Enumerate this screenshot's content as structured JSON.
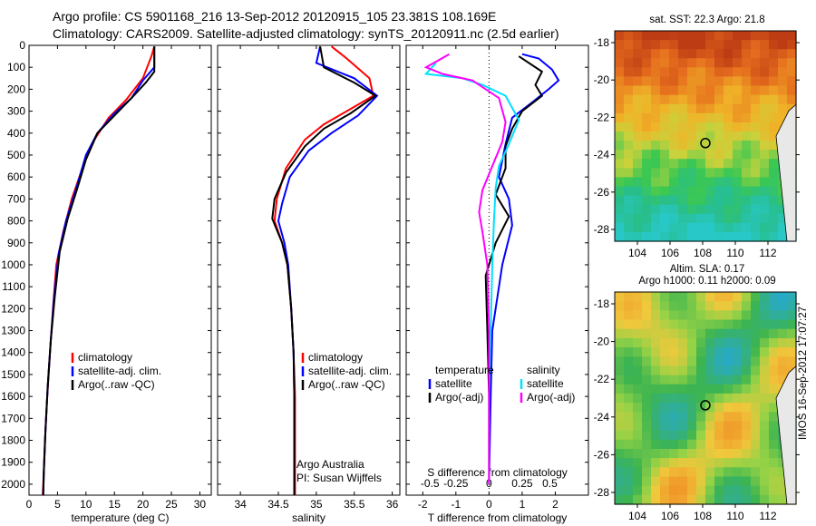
{
  "header": {
    "line1": "Argo profile: CS 5901168_216 13-Sep-2012 20120915_105 23.381S 108.169E",
    "line2": "Climatology: CARS2009. Satellite-adjusted climatology: synTS_20120911.nc (2.5d earlier)"
  },
  "stamp": "IMOS 16-Sep-2012 17:07:27",
  "colors": {
    "climatology": "#ff0000",
    "satellite": "#0000ff",
    "argo": "#000000",
    "sat_s": "#00e0ff",
    "argo_s": "#ff00ff"
  },
  "chart_data": [
    {
      "type": "line",
      "xlabel": "temperature (deg C)",
      "xlim": [
        0,
        32
      ],
      "xticks": [
        0,
        5,
        10,
        15,
        20,
        25,
        30
      ],
      "ylim": [
        2050,
        0
      ],
      "yticks": [
        0,
        100,
        200,
        300,
        400,
        500,
        600,
        700,
        800,
        900,
        1000,
        1100,
        1200,
        1300,
        1400,
        1500,
        1600,
        1700,
        1800,
        1900,
        2000
      ],
      "legend": [
        "climatology",
        "satellite-adj. clim.",
        "Argo(..raw -QC)"
      ],
      "series": [
        {
          "name": "climatology",
          "color": "climatology",
          "points": [
            [
              22,
              5
            ],
            [
              21.5,
              50
            ],
            [
              20,
              150
            ],
            [
              17,
              250
            ],
            [
              14,
              330
            ],
            [
              11.5,
              430
            ],
            [
              9.5,
              550
            ],
            [
              7.5,
              700
            ],
            [
              6,
              850
            ],
            [
              4.8,
              1000
            ],
            [
              4.2,
              1200
            ],
            [
              3.7,
              1400
            ],
            [
              3.2,
              1600
            ],
            [
              2.8,
              1800
            ],
            [
              2.5,
              2000
            ],
            [
              2.4,
              2050
            ]
          ]
        },
        {
          "name": "satellite-adj. clim.",
          "color": "satellite",
          "points": [
            [
              22,
              5
            ],
            [
              22,
              100
            ],
            [
              20,
              160
            ],
            [
              18,
              240
            ],
            [
              15,
              310
            ],
            [
              12,
              400
            ],
            [
              10,
              500
            ],
            [
              8.2,
              660
            ],
            [
              6.5,
              800
            ],
            [
              5.2,
              950
            ],
            [
              4.4,
              1150
            ],
            [
              3.8,
              1350
            ],
            [
              3.3,
              1550
            ],
            [
              2.9,
              1750
            ],
            [
              2.6,
              1950
            ],
            [
              2.5,
              2050
            ]
          ]
        },
        {
          "name": "Argo(..raw -QC)",
          "color": "argo",
          "points": [
            [
              22,
              5
            ],
            [
              22,
              120
            ],
            [
              20.5,
              170
            ],
            [
              18,
              240
            ],
            [
              15,
              320
            ],
            [
              12,
              400
            ],
            [
              10,
              520
            ],
            [
              8.5,
              650
            ],
            [
              6.8,
              790
            ],
            [
              5.4,
              940
            ],
            [
              4.5,
              1150
            ],
            [
              3.8,
              1350
            ],
            [
              3.3,
              1550
            ],
            [
              2.9,
              1750
            ],
            [
              2.6,
              1950
            ],
            [
              2.5,
              2050
            ]
          ]
        }
      ]
    },
    {
      "type": "line",
      "xlabel": "salinity",
      "xlim": [
        33.7,
        36.1
      ],
      "xticks": [
        34,
        34.5,
        35,
        35.5,
        36
      ],
      "ylim": [
        2050,
        0
      ],
      "legend": [
        "climatology",
        "satellite-adj. clim.",
        "Argo(..raw -QC)"
      ],
      "annotation": [
        "Argo Australia",
        "PI: Susan Wijffels"
      ],
      "series": [
        {
          "name": "climatology",
          "color": "climatology",
          "points": [
            [
              35.2,
              5
            ],
            [
              35.4,
              60
            ],
            [
              35.7,
              150
            ],
            [
              35.75,
              230
            ],
            [
              35.4,
              300
            ],
            [
              35.1,
              360
            ],
            [
              34.85,
              430
            ],
            [
              34.6,
              560
            ],
            [
              34.48,
              700
            ],
            [
              34.45,
              800
            ],
            [
              34.55,
              900
            ],
            [
              34.62,
              1000
            ],
            [
              34.67,
              1200
            ],
            [
              34.7,
              1400
            ],
            [
              34.72,
              1600
            ],
            [
              34.72,
              2050
            ]
          ]
        },
        {
          "name": "satellite-adj. clim.",
          "color": "satellite",
          "points": [
            [
              35.05,
              5
            ],
            [
              35.0,
              80
            ],
            [
              35.5,
              150
            ],
            [
              35.8,
              230
            ],
            [
              35.55,
              320
            ],
            [
              35.2,
              400
            ],
            [
              34.9,
              480
            ],
            [
              34.65,
              600
            ],
            [
              34.55,
              720
            ],
            [
              34.5,
              800
            ],
            [
              34.58,
              900
            ],
            [
              34.63,
              1000
            ],
            [
              34.67,
              1200
            ],
            [
              34.7,
              1400
            ],
            [
              34.71,
              1600
            ],
            [
              34.71,
              2050
            ]
          ]
        },
        {
          "name": "Argo(..raw -QC)",
          "color": "argo",
          "points": [
            [
              35.05,
              5
            ],
            [
              35.1,
              100
            ],
            [
              35.5,
              170
            ],
            [
              35.78,
              230
            ],
            [
              35.45,
              310
            ],
            [
              35.1,
              380
            ],
            [
              34.85,
              460
            ],
            [
              34.6,
              580
            ],
            [
              34.45,
              700
            ],
            [
              34.42,
              790
            ],
            [
              34.55,
              900
            ],
            [
              34.62,
              1000
            ],
            [
              34.67,
              1200
            ],
            [
              34.7,
              1400
            ],
            [
              34.71,
              1600
            ],
            [
              34.71,
              2050
            ]
          ]
        }
      ]
    },
    {
      "type": "line",
      "xlabel_top": "S difference from climatology",
      "xlabel": "T difference from climatology",
      "xlim": [
        -2.5,
        3
      ],
      "xticks": [
        -2,
        -1,
        0,
        1,
        2
      ],
      "sticks_at": [
        -2,
        -1,
        0,
        1,
        2
      ],
      "sticks": [
        "-0.5",
        "-0.25",
        "0",
        "0.25",
        "0.5"
      ],
      "ylim": [
        2050,
        0
      ],
      "legend_left": [
        "temperature",
        "satellite",
        "Argo(-adj)"
      ],
      "legend_right": [
        "salinity",
        "satellite",
        "Argo(-adj)"
      ],
      "series": [
        {
          "name": "temperature satellite",
          "color": "satellite",
          "points": [
            [
              1,
              40
            ],
            [
              1.5,
              60
            ],
            [
              1.9,
              110
            ],
            [
              2.1,
              160
            ],
            [
              1.8,
              200
            ],
            [
              1.3,
              260
            ],
            [
              0.7,
              330
            ],
            [
              0.5,
              450
            ],
            [
              0.3,
              600
            ],
            [
              0.6,
              700
            ],
            [
              0.7,
              820
            ],
            [
              0.4,
              1000
            ],
            [
              0.1,
              1300
            ],
            [
              0.05,
              1600
            ],
            [
              0,
              2000
            ]
          ]
        },
        {
          "name": "temperature Argo(-adj)",
          "color": "argo",
          "points": [
            [
              0.9,
              50
            ],
            [
              1.6,
              120
            ],
            [
              1.4,
              180
            ],
            [
              1.6,
              230
            ],
            [
              1,
              300
            ],
            [
              0.7,
              380
            ],
            [
              0.5,
              460
            ],
            [
              0.5,
              560
            ],
            [
              0.2,
              680
            ],
            [
              0.6,
              780
            ],
            [
              0.2,
              900
            ],
            [
              -0.1,
              1050
            ],
            [
              -0.05,
              1300
            ],
            [
              0,
              1600
            ],
            [
              0,
              2000
            ]
          ]
        },
        {
          "name": "salinity satellite",
          "color": "sat_s",
          "points": [
            [
              -1.6,
              80
            ],
            [
              -1.9,
              130
            ],
            [
              -0.8,
              150
            ],
            [
              -0.2,
              180
            ],
            [
              0.5,
              230
            ],
            [
              0.9,
              340
            ],
            [
              0.6,
              450
            ],
            [
              0.3,
              550
            ],
            [
              0.2,
              650
            ],
            [
              0.15,
              800
            ],
            [
              0.1,
              1000
            ],
            [
              0.05,
              1300
            ],
            [
              0,
              1600
            ],
            [
              0,
              2000
            ]
          ]
        },
        {
          "name": "salinity Argo(-adj)",
          "color": "argo_s",
          "points": [
            [
              -1.2,
              40
            ],
            [
              -1.9,
              100
            ],
            [
              -1.4,
              130
            ],
            [
              -0.5,
              160
            ],
            [
              0.3,
              240
            ],
            [
              0.5,
              350
            ],
            [
              0.4,
              440
            ],
            [
              0.1,
              550
            ],
            [
              -0.2,
              660
            ],
            [
              -0.3,
              760
            ],
            [
              -0.2,
              850
            ],
            [
              -0.05,
              1000
            ],
            [
              0,
              1300
            ],
            [
              0,
              2000
            ]
          ]
        }
      ]
    }
  ],
  "maps": [
    {
      "title": [
        "sat. SST: 22.3  Argo: 21.8"
      ],
      "yticks": [
        "-18",
        "-20",
        "-22",
        "-24",
        "-26",
        "-28"
      ],
      "xticks": [
        "104",
        "106",
        "108",
        "110",
        "112"
      ],
      "palette": "sst"
    },
    {
      "title": [
        "Altim. SLA: 0.17",
        "Argo h1000: 0.11  h2000: 0.09"
      ],
      "yticks": [
        "-18",
        "-20",
        "-22",
        "-24",
        "-26",
        "-28"
      ],
      "xticks": [
        "104",
        "106",
        "108",
        "110",
        "112"
      ],
      "palette": "sla"
    }
  ]
}
